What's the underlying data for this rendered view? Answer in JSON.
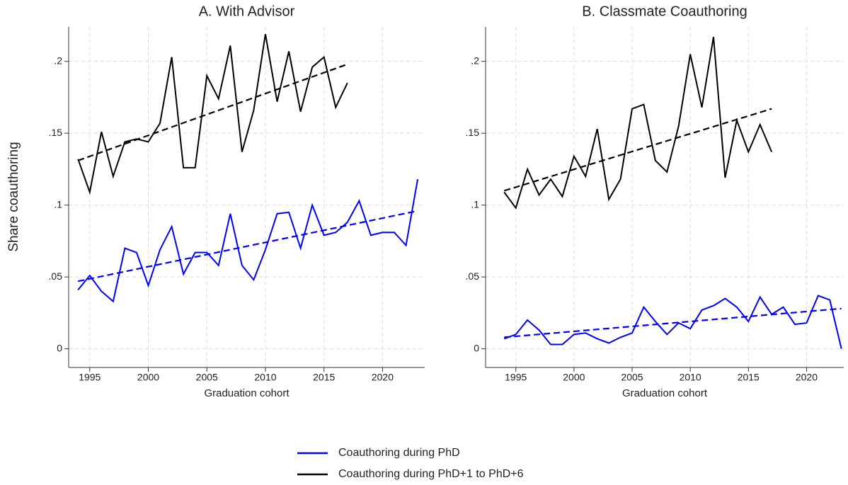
{
  "chart_data": [
    {
      "type": "line",
      "title": "A. With Advisor",
      "xlabel": "Graduation cohort",
      "ylabel": "Share coauthoring",
      "x": [
        1994,
        1995,
        1996,
        1997,
        1998,
        1999,
        2000,
        2001,
        2002,
        2003,
        2004,
        2005,
        2006,
        2007,
        2008,
        2009,
        2010,
        2011,
        2012,
        2013,
        2014,
        2015,
        2016,
        2017,
        2018,
        2019,
        2020,
        2021,
        2022,
        2023
      ],
      "series": [
        {
          "name": "Coauthoring during PhD",
          "color": "#0000ff",
          "values": [
            0.041,
            0.051,
            0.04,
            0.033,
            0.07,
            0.067,
            0.044,
            0.069,
            0.085,
            0.052,
            0.067,
            0.067,
            0.058,
            0.094,
            0.058,
            0.048,
            0.069,
            0.094,
            0.095,
            0.07,
            0.1,
            0.079,
            0.081,
            0.088,
            0.103,
            0.079,
            0.081,
            0.081,
            0.072,
            0.118
          ],
          "fit_x": [
            1994,
            2023
          ],
          "fit_values": [
            0.047,
            0.096
          ]
        },
        {
          "name": "Coauthoring during PhD+1 to PhD+6",
          "color": "#000000",
          "values": [
            0.132,
            0.109,
            0.151,
            0.12,
            0.144,
            0.146,
            0.144,
            0.157,
            0.203,
            0.126,
            0.126,
            0.19,
            0.174,
            0.211,
            0.137,
            0.166,
            0.219,
            0.172,
            0.207,
            0.165,
            0.196,
            0.203,
            0.168,
            0.185,
            null,
            null,
            null,
            null,
            null,
            null
          ],
          "fit_x": [
            1994,
            2017
          ],
          "fit_values": [
            0.131,
            0.198
          ]
        }
      ],
      "xlim": [
        1993.2,
        2023.6
      ],
      "xticks": [
        1995,
        2000,
        2005,
        2010,
        2015,
        2020
      ],
      "ylim": [
        -0.013,
        0.224
      ],
      "yticks": [
        0,
        {
          "value": 0.05,
          "label": ".05"
        },
        {
          "value": 0.1,
          "label": ".1"
        },
        {
          "value": 0.15,
          "label": ".15"
        },
        {
          "value": 0.2,
          "label": ".2"
        }
      ],
      "grid": true
    },
    {
      "type": "line",
      "title": "B. Classmate Coauthoring",
      "xlabel": "Graduation cohort",
      "x": [
        1994,
        1995,
        1996,
        1997,
        1998,
        1999,
        2000,
        2001,
        2002,
        2003,
        2004,
        2005,
        2006,
        2007,
        2008,
        2009,
        2010,
        2011,
        2012,
        2013,
        2014,
        2015,
        2016,
        2017,
        2018,
        2019,
        2020,
        2021,
        2022,
        2023
      ],
      "series": [
        {
          "color": "#0000ff",
          "values": [
            0.007,
            0.01,
            0.02,
            0.013,
            0.003,
            0.003,
            0.01,
            0.011,
            0.007,
            0.004,
            0.008,
            0.011,
            0.029,
            0.019,
            0.01,
            0.018,
            0.014,
            0.027,
            0.03,
            0.035,
            0.029,
            0.019,
            0.036,
            0.024,
            0.029,
            0.017,
            0.018,
            0.037,
            0.034,
            0
          ],
          "fit_x": [
            1994,
            2023
          ],
          "fit_values": [
            0.008,
            0.028
          ]
        },
        {
          "color": "#000000",
          "values": [
            0.109,
            0.098,
            0.125,
            0.107,
            0.118,
            0.106,
            0.134,
            0.12,
            0.153,
            0.104,
            0.118,
            0.167,
            0.17,
            0.131,
            0.123,
            0.155,
            0.205,
            0.168,
            0.217,
            0.119,
            0.159,
            0.137,
            0.156,
            0.137,
            null,
            null,
            null,
            null,
            null,
            null
          ],
          "fit_x": [
            1994,
            2017
          ],
          "fit_values": [
            0.11,
            0.167
          ]
        }
      ],
      "xlim": [
        1992.4,
        2023.2
      ],
      "xticks": [
        1995,
        2000,
        2005,
        2010,
        2015,
        2020
      ],
      "ylim": [
        -0.013,
        0.224
      ],
      "yticks": [
        0,
        {
          "value": 0.05,
          "label": ".05"
        },
        {
          "value": 0.1,
          "label": ".1"
        },
        {
          "value": 0.15,
          "label": ".15"
        },
        {
          "value": 0.2,
          "label": ".2"
        }
      ],
      "grid": true
    }
  ]
}
